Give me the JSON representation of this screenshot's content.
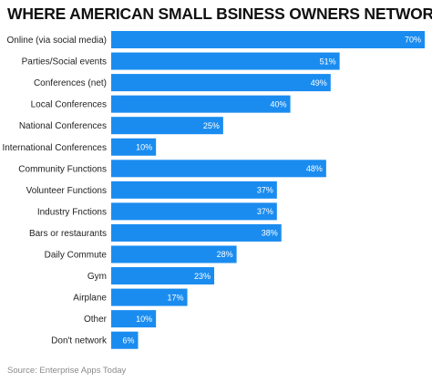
{
  "chart_data": {
    "type": "bar",
    "orientation": "horizontal",
    "title": "WHERE AMERICAN SMALL BSINESS OWNERS NETWORK",
    "source": "Source: Enterprise Apps Today",
    "categories": [
      "Online (via social media)",
      "Parties/Social events",
      "Conferences (net)",
      "Local Conferences",
      "National Conferences",
      "International Conferences",
      "Community Functions",
      "Volunteer Functions",
      "Industry Fnctions",
      "Bars or restaurants",
      "Daily Commute",
      "Gym",
      "Airplane",
      "Other",
      "Don't network"
    ],
    "values": [
      70,
      51,
      49,
      40,
      25,
      10,
      48,
      37,
      37,
      38,
      28,
      23,
      17,
      10,
      6
    ],
    "value_labels": [
      "70%",
      "51%",
      "49%",
      "40%",
      "25%",
      "10%",
      "48%",
      "37%",
      "37%",
      "38%",
      "28%",
      "23%",
      "17%",
      "10%",
      "6%"
    ],
    "xlim": [
      0,
      70
    ],
    "grid": false,
    "bar_color": "#1a8cf0"
  }
}
